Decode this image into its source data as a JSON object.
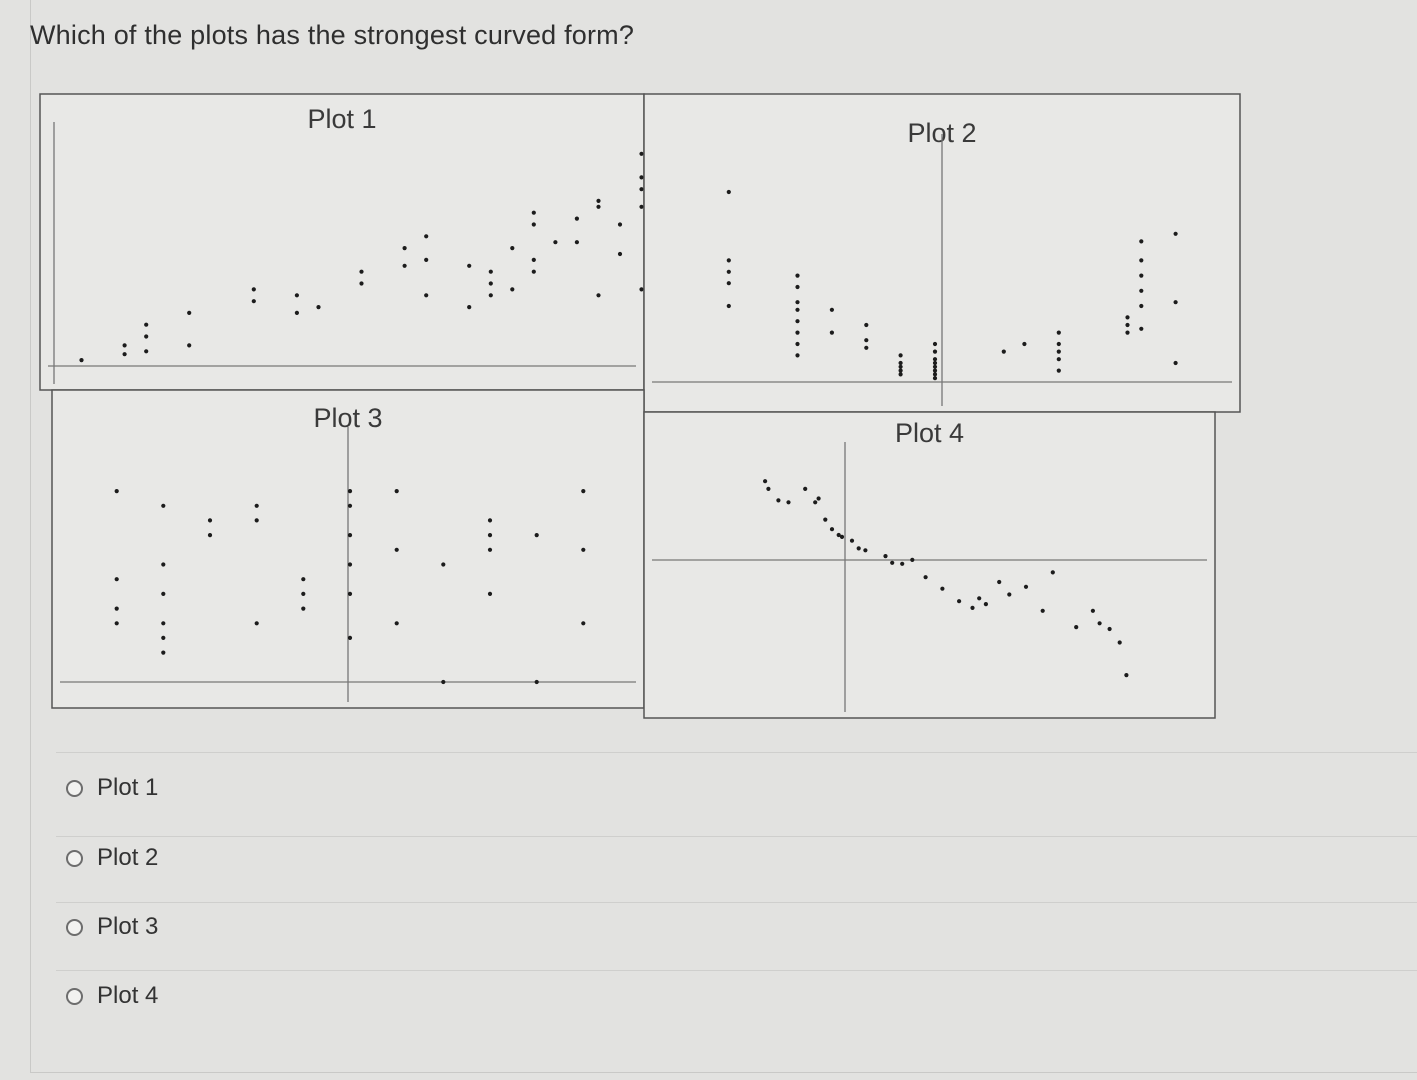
{
  "question": {
    "text": "Which of the plots has the strongest curved form?"
  },
  "figure": {
    "panel_titles": [
      "Plot 1",
      "Plot 2",
      "Plot 3",
      "Plot 4"
    ]
  },
  "chart_data": [
    {
      "type": "scatter",
      "title": "Plot 1",
      "xlim": [
        0,
        26
      ],
      "ylim": [
        0,
        38
      ],
      "points": [
        [
          1,
          1
        ],
        [
          3,
          2
        ],
        [
          3,
          3.5
        ],
        [
          4,
          2.5
        ],
        [
          4,
          5
        ],
        [
          4,
          7
        ],
        [
          6,
          3.5
        ],
        [
          6,
          9
        ],
        [
          9,
          11
        ],
        [
          9,
          13
        ],
        [
          11,
          9
        ],
        [
          11,
          12
        ],
        [
          12,
          10
        ],
        [
          14,
          16
        ],
        [
          14,
          14
        ],
        [
          16,
          17
        ],
        [
          16,
          20
        ],
        [
          17,
          12
        ],
        [
          17,
          18
        ],
        [
          17,
          22
        ],
        [
          19,
          10
        ],
        [
          19,
          17
        ],
        [
          20,
          12
        ],
        [
          20,
          14
        ],
        [
          20,
          16
        ],
        [
          21,
          13
        ],
        [
          21,
          20
        ],
        [
          22,
          16
        ],
        [
          22,
          24
        ],
        [
          22,
          26
        ],
        [
          22,
          18
        ],
        [
          23,
          21
        ],
        [
          24,
          25
        ],
        [
          24,
          21
        ],
        [
          25,
          27
        ],
        [
          25,
          12
        ],
        [
          25,
          28
        ],
        [
          26,
          24
        ],
        [
          26,
          19
        ],
        [
          27,
          13
        ],
        [
          27,
          27
        ],
        [
          27,
          30
        ],
        [
          27,
          32
        ],
        [
          27,
          36
        ]
      ]
    },
    {
      "type": "scatter",
      "title": "Plot 2",
      "xlim": [
        -4,
        4
      ],
      "ylim": [
        0,
        60
      ],
      "points": [
        [
          -3,
          50
        ],
        [
          -3,
          32
        ],
        [
          -3,
          29
        ],
        [
          -3,
          26
        ],
        [
          -3,
          20
        ],
        [
          -2,
          28
        ],
        [
          -2,
          25
        ],
        [
          -2,
          21
        ],
        [
          -2,
          19
        ],
        [
          -2,
          16
        ],
        [
          -2,
          13
        ],
        [
          -2,
          10
        ],
        [
          -2,
          7
        ],
        [
          -1.5,
          19
        ],
        [
          -1.5,
          13
        ],
        [
          -1,
          15
        ],
        [
          -1,
          11
        ],
        [
          -1,
          9
        ],
        [
          -0.5,
          7
        ],
        [
          -0.5,
          5
        ],
        [
          -0.5,
          4
        ],
        [
          -0.5,
          3
        ],
        [
          -0.5,
          2
        ],
        [
          0,
          10
        ],
        [
          0,
          8
        ],
        [
          0,
          6
        ],
        [
          0,
          5
        ],
        [
          0,
          4
        ],
        [
          0,
          3
        ],
        [
          0,
          2
        ],
        [
          0,
          1
        ],
        [
          1,
          8
        ],
        [
          1.3,
          10
        ],
        [
          1.8,
          13
        ],
        [
          1.8,
          10
        ],
        [
          1.8,
          8
        ],
        [
          1.8,
          6
        ],
        [
          1.8,
          3
        ],
        [
          2.8,
          17
        ],
        [
          2.8,
          15
        ],
        [
          2.8,
          13
        ],
        [
          3,
          37
        ],
        [
          3,
          32
        ],
        [
          3,
          28
        ],
        [
          3,
          24
        ],
        [
          3,
          20
        ],
        [
          3,
          14
        ],
        [
          3.5,
          39
        ],
        [
          3.5,
          21
        ],
        [
          3.5,
          5
        ]
      ]
    },
    {
      "type": "scatter",
      "title": "Plot 3",
      "xlim": [
        -6,
        6
      ],
      "ylim": [
        0,
        16
      ],
      "points": [
        [
          -5,
          13
        ],
        [
          -5,
          7
        ],
        [
          -5,
          5
        ],
        [
          -5,
          4
        ],
        [
          -4,
          12
        ],
        [
          -4,
          8
        ],
        [
          -4,
          6
        ],
        [
          -4,
          4
        ],
        [
          -4,
          3
        ],
        [
          -4,
          2
        ],
        [
          -3,
          11
        ],
        [
          -3,
          10
        ],
        [
          -2,
          12
        ],
        [
          -2,
          11
        ],
        [
          -2,
          4
        ],
        [
          -1,
          7
        ],
        [
          -1,
          6
        ],
        [
          -1,
          5
        ],
        [
          0,
          13
        ],
        [
          0,
          12
        ],
        [
          0,
          10
        ],
        [
          0,
          8
        ],
        [
          0,
          6
        ],
        [
          0,
          3
        ],
        [
          1,
          13
        ],
        [
          1,
          9
        ],
        [
          1,
          4
        ],
        [
          2,
          8
        ],
        [
          2,
          0
        ],
        [
          3,
          11
        ],
        [
          3,
          10
        ],
        [
          3,
          9
        ],
        [
          3,
          6
        ],
        [
          4,
          10
        ],
        [
          4,
          0
        ],
        [
          5,
          13
        ],
        [
          5,
          9
        ],
        [
          5,
          4
        ]
      ]
    },
    {
      "type": "scatter",
      "title": "Plot 4",
      "xlim": [
        -40,
        125
      ],
      "ylim": [
        -150,
        100
      ],
      "points": [
        [
          -8,
          80
        ],
        [
          -7,
          72
        ],
        [
          -4,
          60
        ],
        [
          -1,
          58
        ],
        [
          4,
          72
        ],
        [
          7,
          58
        ],
        [
          8,
          62
        ],
        [
          10,
          40
        ],
        [
          12,
          30
        ],
        [
          14,
          24
        ],
        [
          15,
          22
        ],
        [
          18,
          18
        ],
        [
          20,
          10
        ],
        [
          22,
          8
        ],
        [
          28,
          2
        ],
        [
          30,
          -5
        ],
        [
          33,
          -6
        ],
        [
          36,
          -2
        ],
        [
          40,
          -20
        ],
        [
          45,
          -32
        ],
        [
          50,
          -45
        ],
        [
          54,
          -52
        ],
        [
          56,
          -42
        ],
        [
          58,
          -48
        ],
        [
          62,
          -25
        ],
        [
          65,
          -38
        ],
        [
          70,
          -30
        ],
        [
          75,
          -55
        ],
        [
          78,
          -15
        ],
        [
          85,
          -72
        ],
        [
          90,
          -55
        ],
        [
          92,
          -68
        ],
        [
          95,
          -74
        ],
        [
          98,
          -88
        ],
        [
          100,
          -122
        ]
      ]
    }
  ],
  "options": [
    {
      "label": "Plot 1"
    },
    {
      "label": "Plot 2"
    },
    {
      "label": "Plot 3"
    },
    {
      "label": "Plot 4"
    }
  ],
  "colors": {
    "background": "#e2e2e0",
    "plot_background": "#e8e8e6",
    "frame": "#555555",
    "dot": "#1c1c1c",
    "text": "#333333"
  },
  "icons": {
    "radio": "radio-unselected-icon"
  }
}
